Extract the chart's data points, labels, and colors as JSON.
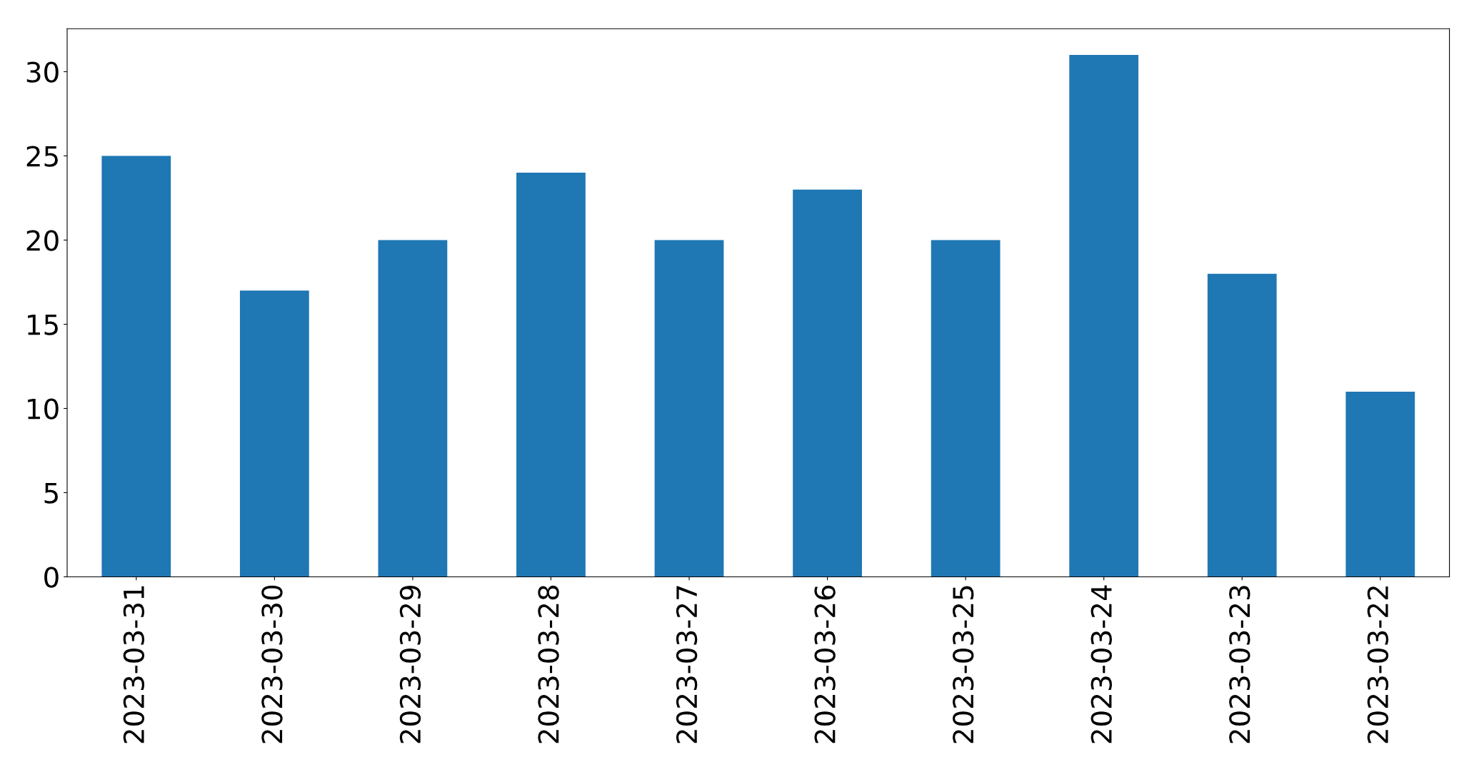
{
  "chart_data": {
    "type": "bar",
    "categories": [
      "2023-03-31",
      "2023-03-30",
      "2023-03-29",
      "2023-03-28",
      "2023-03-27",
      "2023-03-26",
      "2023-03-25",
      "2023-03-24",
      "2023-03-23",
      "2023-03-22"
    ],
    "values": [
      25,
      17,
      20,
      24,
      20,
      23,
      20,
      31,
      18,
      11
    ],
    "color": "#1f77b4",
    "ylim": [
      0,
      32.55
    ],
    "yticks": [
      0,
      5,
      10,
      15,
      20,
      25,
      30
    ],
    "grid": false,
    "legend": false
  }
}
